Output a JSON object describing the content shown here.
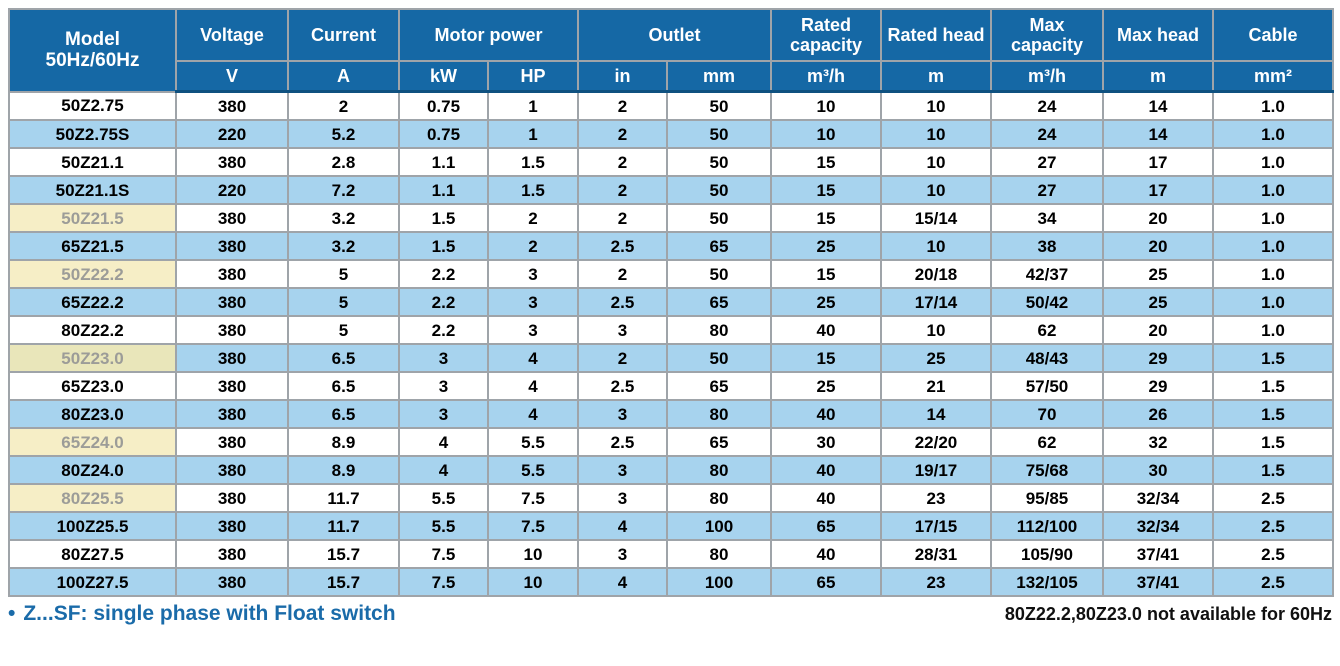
{
  "colors": {
    "header_bg": "#1568a5",
    "header_text": "#ffffff",
    "row_bg": "#ffffff",
    "row_alt_bg": "#a7d3ee",
    "highlight_bg": "#f6eec6",
    "highlight_on_alt_bg": "#e9e6ba",
    "highlight_text": "#9c9c98",
    "grid_border": "#9fa4a9",
    "header_divider": "#0f5180",
    "footnote_blue": "#1a6ba9",
    "body_text": "#000000"
  },
  "table": {
    "header": {
      "model_label": "Model",
      "model_sublabel": "50Hz/60Hz",
      "voltage": {
        "label": "Voltage",
        "unit": "V"
      },
      "current": {
        "label": "Current",
        "unit": "A"
      },
      "motor_power": {
        "label": "Motor power",
        "units": [
          "kW",
          "HP"
        ]
      },
      "outlet": {
        "label": "Outlet",
        "units": [
          "in",
          "mm"
        ]
      },
      "rated_capacity": {
        "label": "Rated capacity",
        "unit": "m³/h"
      },
      "rated_head": {
        "label": "Rated head",
        "unit": "m"
      },
      "max_capacity": {
        "label": "Max capacity",
        "unit": "m³/h"
      },
      "max_head": {
        "label": "Max head",
        "unit": "m"
      },
      "cable": {
        "label": "Cable",
        "unit": "mm²"
      }
    },
    "column_keys": [
      "voltage",
      "current",
      "power-kw",
      "power-hp",
      "outlet-in",
      "outlet-mm",
      "rated-capacity",
      "rated-head",
      "max-capacity",
      "max-head",
      "cable"
    ],
    "rows": [
      {
        "model": "50Z2.75",
        "highlight": false,
        "values": [
          "380",
          "2",
          "0.75",
          "1",
          "2",
          "50",
          "10",
          "10",
          "24",
          "14",
          "1.0"
        ]
      },
      {
        "model": "50Z2.75S",
        "highlight": false,
        "values": [
          "220",
          "5.2",
          "0.75",
          "1",
          "2",
          "50",
          "10",
          "10",
          "24",
          "14",
          "1.0"
        ]
      },
      {
        "model": "50Z21.1",
        "highlight": false,
        "values": [
          "380",
          "2.8",
          "1.1",
          "1.5",
          "2",
          "50",
          "15",
          "10",
          "27",
          "17",
          "1.0"
        ]
      },
      {
        "model": "50Z21.1S",
        "highlight": false,
        "values": [
          "220",
          "7.2",
          "1.1",
          "1.5",
          "2",
          "50",
          "15",
          "10",
          "27",
          "17",
          "1.0"
        ]
      },
      {
        "model": "50Z21.5",
        "highlight": true,
        "values": [
          "380",
          "3.2",
          "1.5",
          "2",
          "2",
          "50",
          "15",
          "15/14",
          "34",
          "20",
          "1.0"
        ]
      },
      {
        "model": "65Z21.5",
        "highlight": false,
        "values": [
          "380",
          "3.2",
          "1.5",
          "2",
          "2.5",
          "65",
          "25",
          "10",
          "38",
          "20",
          "1.0"
        ]
      },
      {
        "model": "50Z22.2",
        "highlight": true,
        "values": [
          "380",
          "5",
          "2.2",
          "3",
          "2",
          "50",
          "15",
          "20/18",
          "42/37",
          "25",
          "1.0"
        ]
      },
      {
        "model": "65Z22.2",
        "highlight": false,
        "values": [
          "380",
          "5",
          "2.2",
          "3",
          "2.5",
          "65",
          "25",
          "17/14",
          "50/42",
          "25",
          "1.0"
        ]
      },
      {
        "model": "80Z22.2",
        "highlight": false,
        "values": [
          "380",
          "5",
          "2.2",
          "3",
          "3",
          "80",
          "40",
          "10",
          "62",
          "20",
          "1.0"
        ]
      },
      {
        "model": "50Z23.0",
        "highlight": true,
        "values": [
          "380",
          "6.5",
          "3",
          "4",
          "2",
          "50",
          "15",
          "25",
          "48/43",
          "29",
          "1.5"
        ]
      },
      {
        "model": "65Z23.0",
        "highlight": false,
        "values": [
          "380",
          "6.5",
          "3",
          "4",
          "2.5",
          "65",
          "25",
          "21",
          "57/50",
          "29",
          "1.5"
        ]
      },
      {
        "model": "80Z23.0",
        "highlight": false,
        "values": [
          "380",
          "6.5",
          "3",
          "4",
          "3",
          "80",
          "40",
          "14",
          "70",
          "26",
          "1.5"
        ]
      },
      {
        "model": "65Z24.0",
        "highlight": true,
        "values": [
          "380",
          "8.9",
          "4",
          "5.5",
          "2.5",
          "65",
          "30",
          "22/20",
          "62",
          "32",
          "1.5"
        ]
      },
      {
        "model": "80Z24.0",
        "highlight": false,
        "values": [
          "380",
          "8.9",
          "4",
          "5.5",
          "3",
          "80",
          "40",
          "19/17",
          "75/68",
          "30",
          "1.5"
        ]
      },
      {
        "model": "80Z25.5",
        "highlight": true,
        "values": [
          "380",
          "11.7",
          "5.5",
          "7.5",
          "3",
          "80",
          "40",
          "23",
          "95/85",
          "32/34",
          "2.5"
        ]
      },
      {
        "model": "100Z25.5",
        "highlight": false,
        "values": [
          "380",
          "11.7",
          "5.5",
          "7.5",
          "4",
          "100",
          "65",
          "17/15",
          "112/100",
          "32/34",
          "2.5"
        ]
      },
      {
        "model": "80Z27.5",
        "highlight": false,
        "values": [
          "380",
          "15.7",
          "7.5",
          "10",
          "3",
          "80",
          "40",
          "28/31",
          "105/90",
          "37/41",
          "2.5"
        ]
      },
      {
        "model": "100Z27.5",
        "highlight": false,
        "values": [
          "380",
          "15.7",
          "7.5",
          "10",
          "4",
          "100",
          "65",
          "23",
          "132/105",
          "37/41",
          "2.5"
        ]
      }
    ]
  },
  "footer": {
    "bullet": "•",
    "left_note": "Z...SF: single phase with Float switch",
    "right_note": "80Z22.2,80Z23.0 not available for 60Hz"
  }
}
